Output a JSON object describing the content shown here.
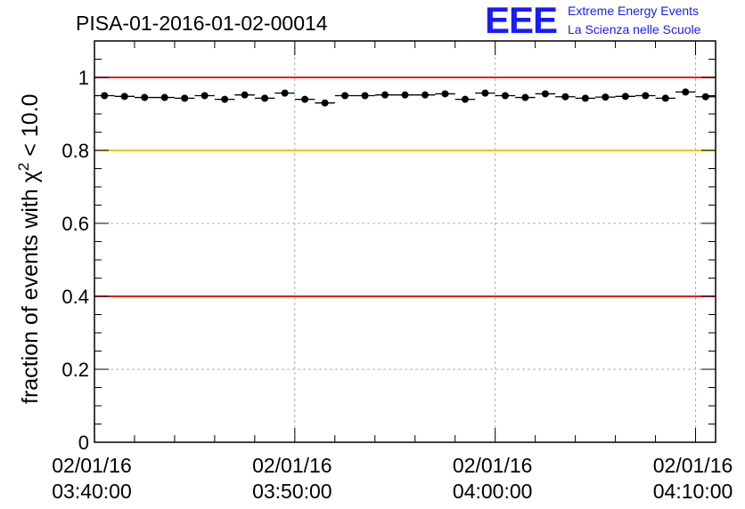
{
  "logo": {
    "mark": "EEE",
    "line1": "Extreme Energy Events",
    "line2": "La Scienza nelle Scuole"
  },
  "colors": {
    "red_line": "#e8211b",
    "yellow_line": "#f5c518",
    "markers": "#000000",
    "logo": "#1a1aff"
  },
  "chart_data": {
    "type": "scatter",
    "title": "PISA-01-2016-01-02-00014",
    "ylabel_main": "fraction of events with χ",
    "ylabel_sup": "2",
    "ylabel_tail": " < 10.0",
    "ylim": [
      0,
      1.1
    ],
    "yticks": [
      "0",
      "0.2",
      "0.4",
      "0.6",
      "0.8",
      "1"
    ],
    "ytick_values": [
      0,
      0.2,
      0.4,
      0.6,
      0.8,
      1.0
    ],
    "xlim_minutes": [
      0,
      31
    ],
    "xtick_minutes": [
      0,
      10,
      20,
      30
    ],
    "xticks": [
      {
        "date": "02/01/16",
        "time": "03:40:00"
      },
      {
        "date": "02/01/16",
        "time": "03:50:00"
      },
      {
        "date": "02/01/16",
        "time": "04:00:00"
      },
      {
        "date": "02/01/16",
        "time": "04:10:00"
      }
    ],
    "reference_lines": [
      {
        "y": 1.0,
        "color": "red"
      },
      {
        "y": 0.8,
        "color": "yellow"
      },
      {
        "y": 0.4,
        "color": "red"
      }
    ],
    "grid": true,
    "bin_width_minutes": 1,
    "x_minutes": [
      0.5,
      1.5,
      2.5,
      3.5,
      4.5,
      5.5,
      6.5,
      7.5,
      8.5,
      9.5,
      10.5,
      11.5,
      12.5,
      13.5,
      14.5,
      15.5,
      16.5,
      17.5,
      18.5,
      19.5,
      20.5,
      21.5,
      22.5,
      23.5,
      24.5,
      25.5,
      26.5,
      27.5,
      28.5,
      29.5,
      30.5
    ],
    "values": [
      0.95,
      0.948,
      0.945,
      0.945,
      0.943,
      0.95,
      0.94,
      0.952,
      0.943,
      0.957,
      0.94,
      0.93,
      0.95,
      0.95,
      0.952,
      0.952,
      0.952,
      0.955,
      0.94,
      0.957,
      0.95,
      0.945,
      0.955,
      0.947,
      0.943,
      0.946,
      0.948,
      0.95,
      0.943,
      0.96,
      0.947
    ]
  }
}
